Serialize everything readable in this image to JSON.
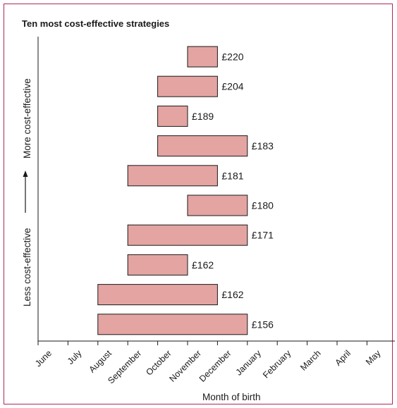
{
  "chart_data": {
    "type": "bar",
    "orientation": "horizontal-range",
    "title": "Ten most cost-effective strategies",
    "xlabel": "Month of birth",
    "ylabel_top": "More cost-effective",
    "ylabel_bottom": "Less cost-effective",
    "months": [
      "June",
      "July",
      "August",
      "September",
      "October",
      "November",
      "December",
      "January",
      "February",
      "March",
      "April",
      "May"
    ],
    "bars": [
      {
        "label": "£220",
        "start": "November",
        "end": "December"
      },
      {
        "label": "£204",
        "start": "October",
        "end": "December"
      },
      {
        "label": "£189",
        "start": "October",
        "end": "November"
      },
      {
        "label": "£183",
        "start": "October",
        "end": "January"
      },
      {
        "label": "£181",
        "start": "September",
        "end": "December"
      },
      {
        "label": "£180",
        "start": "November",
        "end": "January"
      },
      {
        "label": "£171",
        "start": "September",
        "end": "January"
      },
      {
        "label": "£162",
        "start": "September",
        "end": "November"
      },
      {
        "label": "£162",
        "start": "August",
        "end": "December"
      },
      {
        "label": "£156",
        "start": "August",
        "end": "January"
      }
    ],
    "grid": false,
    "legend": "none",
    "colors": {
      "bar_fill": "#e3a4a2",
      "bar_stroke": "#1a1a1a",
      "frame": "#b3245a",
      "axis": "#1a1a1a"
    }
  }
}
